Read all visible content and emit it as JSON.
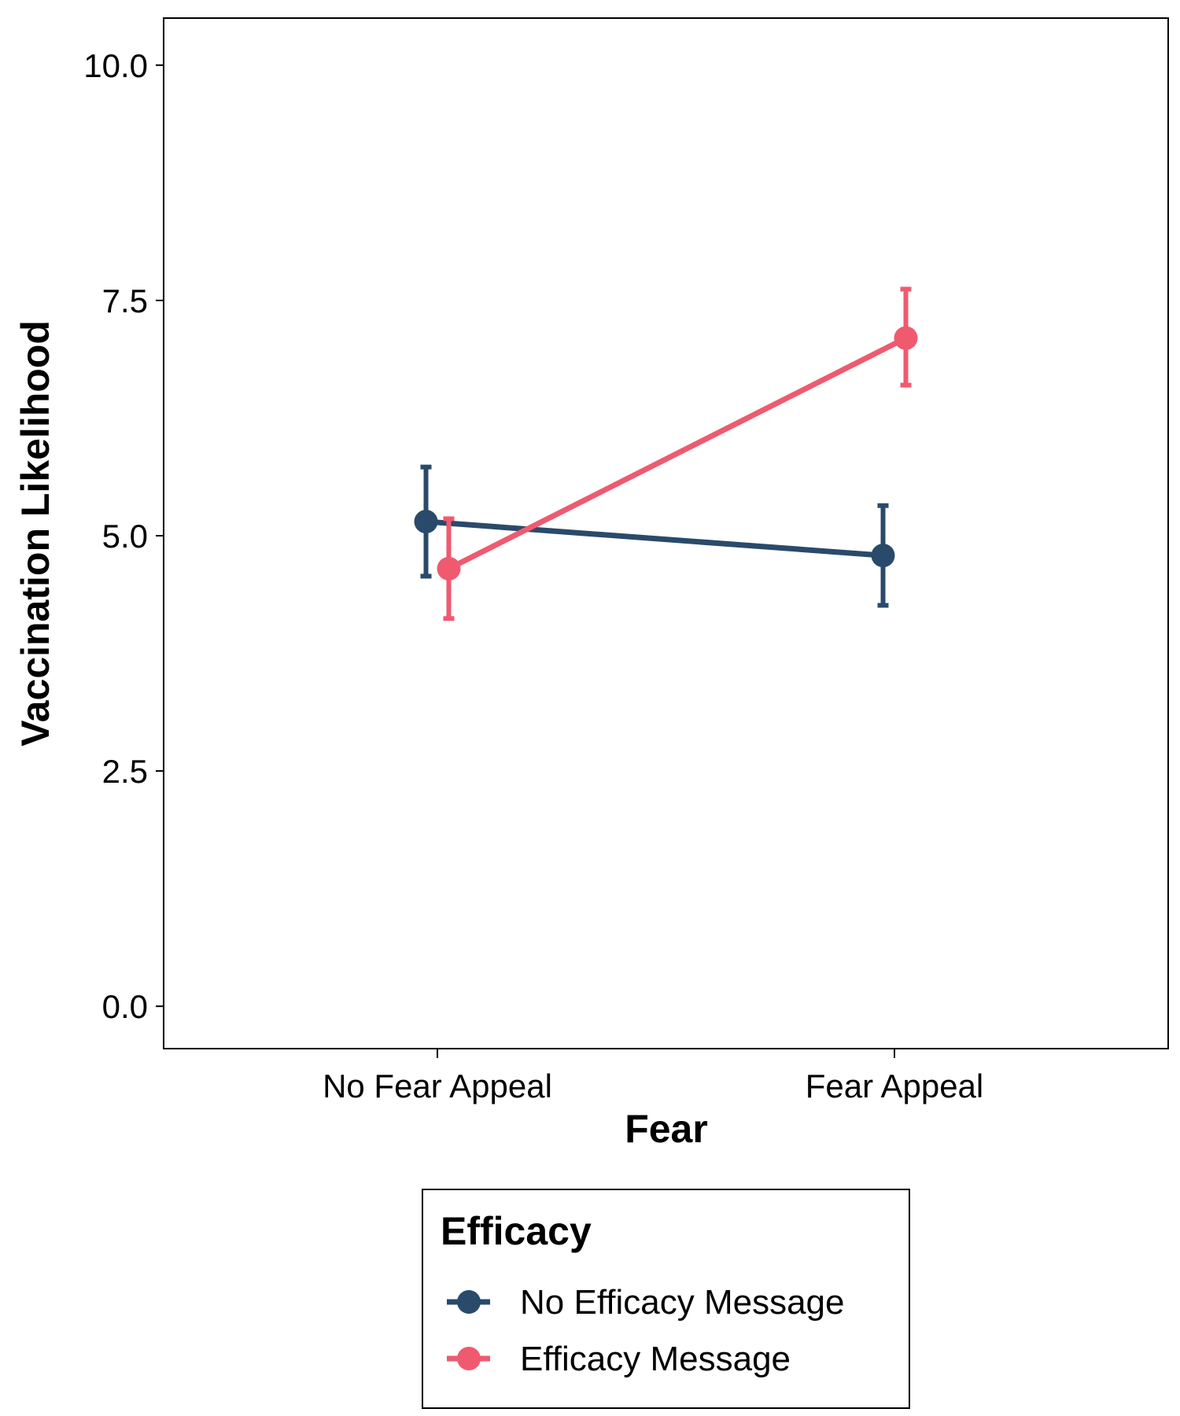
{
  "chart_data": {
    "type": "line",
    "xlabel": "Fear",
    "ylabel": "Vaccination Likelihood",
    "categories": [
      "No Fear Appeal",
      "Fear Appeal"
    ],
    "ylim": [
      -0.45,
      10.5
    ],
    "yticks": [
      0,
      2.5,
      5,
      7.5,
      10
    ],
    "ytick_labels": [
      "0.0",
      "2.5",
      "5.0",
      "7.5",
      "10.0"
    ],
    "grid": false,
    "legend": {
      "title": "Efficacy",
      "placement": "bottom"
    },
    "series": [
      {
        "name": "No Efficacy Message",
        "color": "#2a4a6b",
        "values": [
          5.15,
          4.79
        ],
        "error_low": [
          4.57,
          4.26
        ],
        "error_high": [
          5.73,
          5.32
        ]
      },
      {
        "name": "Efficacy Message",
        "color": "#ef5a6f",
        "values": [
          4.65,
          7.1
        ],
        "error_low": [
          4.12,
          6.6
        ],
        "error_high": [
          5.18,
          7.62
        ]
      }
    ]
  }
}
